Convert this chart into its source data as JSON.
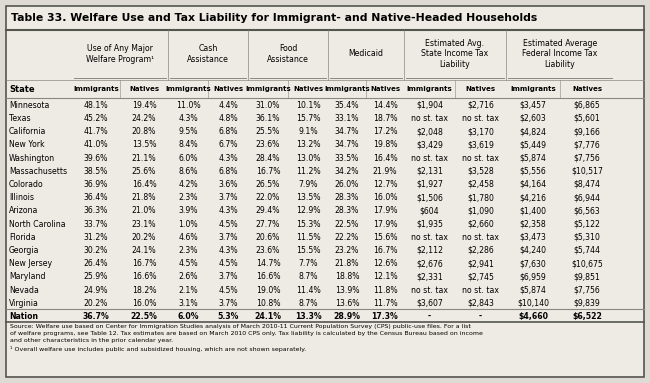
{
  "title": "Table 33. Welfare Use and Tax Liability for Immigrant- and Native-Headed Households",
  "col_groups": [
    {
      "label": "Use of Any Major\nWelfare Program¹",
      "span": 2
    },
    {
      "label": "Cash\nAssistance",
      "span": 2
    },
    {
      "label": "Food\nAssistance",
      "span": 2
    },
    {
      "label": "Medicaid",
      "span": 2
    },
    {
      "label": "Estimated Avg.\nState Income Tax\nLiability",
      "span": 2
    },
    {
      "label": "Estimated Average\nFederal Income Tax\nLiability",
      "span": 2
    }
  ],
  "sub_headers": [
    "Immigrants",
    "Natives",
    "Immigrants",
    "Natives",
    "Immigrants",
    "Natives",
    "Immigrants",
    "Natives",
    "Immigrants",
    "Natives",
    "Immigrants",
    "Natives"
  ],
  "states": [
    "Minnesota",
    "Texas",
    "California",
    "New York",
    "Washington",
    "Massachusetts",
    "Colorado",
    "Illinois",
    "Arizona",
    "North Carolina",
    "Florida",
    "Georgia",
    "New Jersey",
    "Maryland",
    "Nevada",
    "Virginia",
    "Nation"
  ],
  "data": [
    [
      "48.1%",
      "19.4%",
      "11.0%",
      "4.4%",
      "31.0%",
      "10.1%",
      "35.4%",
      "14.4%",
      "$1,904",
      "$2,716",
      "$3,457",
      "$6,865"
    ],
    [
      "45.2%",
      "24.2%",
      "4.3%",
      "4.8%",
      "36.1%",
      "15.7%",
      "33.1%",
      "18.7%",
      "no st. tax",
      "no st. tax",
      "$2,603",
      "$5,601"
    ],
    [
      "41.7%",
      "20.8%",
      "9.5%",
      "6.8%",
      "25.5%",
      "9.1%",
      "34.7%",
      "17.2%",
      "$2,048",
      "$3,170",
      "$4,824",
      "$9,166"
    ],
    [
      "41.0%",
      "13.5%",
      "8.4%",
      "6.7%",
      "23.6%",
      "13.2%",
      "34.7%",
      "19.8%",
      "$3,429",
      "$3,619",
      "$5,449",
      "$7,776"
    ],
    [
      "39.6%",
      "21.1%",
      "6.0%",
      "4.3%",
      "28.4%",
      "13.0%",
      "33.5%",
      "16.4%",
      "no st. tax",
      "no st. tax",
      "$5,874",
      "$7,756"
    ],
    [
      "38.5%",
      "25.6%",
      "8.6%",
      "6.8%",
      "16.7%",
      "11.2%",
      "34.2%",
      "21.9%",
      "$2,131",
      "$3,528",
      "$5,556",
      "$10,517"
    ],
    [
      "36.9%",
      "16.4%",
      "4.2%",
      "3.6%",
      "26.5%",
      "7.9%",
      "26.0%",
      "12.7%",
      "$1,927",
      "$2,458",
      "$4,164",
      "$8,474"
    ],
    [
      "36.4%",
      "21.8%",
      "2.3%",
      "3.7%",
      "22.0%",
      "13.5%",
      "28.3%",
      "16.0%",
      "$1,506",
      "$1,780",
      "$4,216",
      "$6,944"
    ],
    [
      "36.3%",
      "21.0%",
      "3.9%",
      "4.3%",
      "29.4%",
      "12.9%",
      "28.3%",
      "17.9%",
      "$604",
      "$1,090",
      "$1,400",
      "$6,563"
    ],
    [
      "33.7%",
      "23.1%",
      "1.0%",
      "4.5%",
      "27.7%",
      "15.3%",
      "22.5%",
      "17.9%",
      "$1,935",
      "$2,660",
      "$2,358",
      "$5,122"
    ],
    [
      "31.2%",
      "20.2%",
      "4.6%",
      "3.7%",
      "20.6%",
      "11.5%",
      "22.2%",
      "15.6%",
      "no st. tax",
      "no st. tax",
      "$3,473",
      "$5,310"
    ],
    [
      "30.2%",
      "24.1%",
      "2.3%",
      "4.3%",
      "23.6%",
      "15.5%",
      "23.2%",
      "16.7%",
      "$2,112",
      "$2,286",
      "$4,240",
      "$5,744"
    ],
    [
      "26.4%",
      "16.7%",
      "4.5%",
      "4.5%",
      "14.7%",
      "7.7%",
      "21.8%",
      "12.6%",
      "$2,676",
      "$2,941",
      "$7,630",
      "$10,675"
    ],
    [
      "25.9%",
      "16.6%",
      "2.6%",
      "3.7%",
      "16.6%",
      "8.7%",
      "18.8%",
      "12.1%",
      "$2,331",
      "$2,745",
      "$6,959",
      "$9,851"
    ],
    [
      "24.9%",
      "18.2%",
      "2.1%",
      "4.5%",
      "19.0%",
      "11.4%",
      "13.9%",
      "11.8%",
      "no st. tax",
      "no st. tax",
      "$5,874",
      "$7,756"
    ],
    [
      "20.2%",
      "16.0%",
      "3.1%",
      "3.7%",
      "10.8%",
      "8.7%",
      "13.6%",
      "11.7%",
      "$3,607",
      "$2,843",
      "$10,140",
      "$9,839"
    ],
    [
      "36.7%",
      "22.5%",
      "6.0%",
      "5.3%",
      "24.1%",
      "13.3%",
      "28.9%",
      "17.3%",
      "-",
      "-",
      "$4,660",
      "$6,522"
    ]
  ],
  "source_text": "Source: Welfare use based on Center for Immigration Studies analysis of March 2010-11 Current Population Survey (CPS) public-use files. For a list\nof welfare programs, see Table 12. Tax estimates are based on March 2010 CPS only. Tax liability is calculated by the Census Bureau based on income\nand other characteristics in the prior calendar year.\n¹ Overall welfare use includes public and subsidized housing, which are not shown separately.",
  "bg_color": "#dedad4",
  "table_bg": "#eeebe4",
  "border_color": "#888880",
  "outer_border": "#555550"
}
